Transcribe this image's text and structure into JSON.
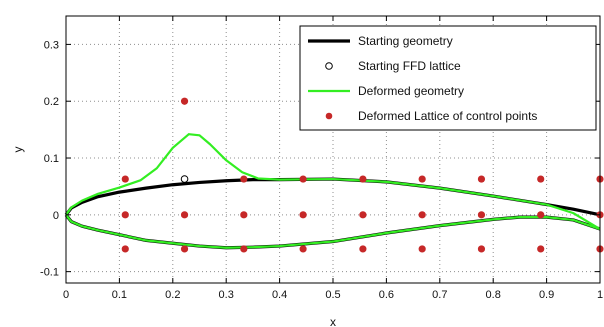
{
  "colors": {
    "background": "#ffffff",
    "axis": "#000000",
    "grid": "#8f8f8f",
    "starting_geometry": "#000000",
    "deformed_geometry": "#33ee22",
    "ffd_lattice_marker_edge": "#000000",
    "deformed_points": "#c62828"
  },
  "chart_data": {
    "type": "line",
    "xlabel": "x",
    "ylabel": "y",
    "xlim": [
      0,
      1
    ],
    "ylim": [
      -0.12,
      0.35
    ],
    "grid": true,
    "legend_position": "top-right",
    "x_ticks": [
      0,
      0.1,
      0.2,
      0.3,
      0.4,
      0.5,
      0.6,
      0.7,
      0.8,
      0.9,
      1
    ],
    "x_tick_labels": [
      "0",
      "0.1",
      "0.2",
      "0.3",
      "0.4",
      "0.5",
      "0.6",
      "0.7",
      "0.8",
      "0.9",
      "1"
    ],
    "y_ticks": [
      -0.1,
      0,
      0.1,
      0.2,
      0.3
    ],
    "y_tick_labels": [
      "-0.1",
      "0",
      "0.1",
      "0.2",
      "0.3"
    ],
    "legend": [
      {
        "label": "Starting geometry",
        "kind": "line",
        "series": "starting_geometry"
      },
      {
        "label": "Starting FFD lattice",
        "kind": "open-circle",
        "series": "starting_ffd_lattice"
      },
      {
        "label": "Deformed geometry",
        "kind": "line",
        "series": "deformed_geometry"
      },
      {
        "label": "Deformed Lattice of control points",
        "kind": "filled-dot",
        "series": "deformed_lattice"
      }
    ],
    "series": {
      "starting_geometry": {
        "upper": {
          "x": [
            0,
            0.01,
            0.03,
            0.06,
            0.1,
            0.15,
            0.2,
            0.25,
            0.3,
            0.35,
            0.4,
            0.5,
            0.6,
            0.7,
            0.8,
            0.9,
            0.95,
            1
          ],
          "y": [
            0,
            0.012,
            0.022,
            0.032,
            0.04,
            0.047,
            0.053,
            0.057,
            0.06,
            0.062,
            0.062,
            0.063,
            0.058,
            0.047,
            0.033,
            0.018,
            0.01,
            0
          ]
        },
        "lower": {
          "x": [
            0,
            0.01,
            0.03,
            0.06,
            0.1,
            0.15,
            0.2,
            0.25,
            0.3,
            0.35,
            0.4,
            0.5,
            0.6,
            0.7,
            0.8,
            0.85,
            0.9,
            0.95,
            1
          ],
          "y": [
            0,
            -0.012,
            -0.02,
            -0.027,
            -0.035,
            -0.045,
            -0.05,
            -0.055,
            -0.058,
            -0.057,
            -0.055,
            -0.047,
            -0.032,
            -0.019,
            -0.008,
            -0.004,
            -0.004,
            -0.009,
            -0.025
          ]
        }
      },
      "deformed_geometry": {
        "upper": {
          "x": [
            0,
            0.01,
            0.03,
            0.06,
            0.1,
            0.14,
            0.17,
            0.2,
            0.23,
            0.25,
            0.27,
            0.3,
            0.33,
            0.36,
            0.4,
            0.5,
            0.6,
            0.7,
            0.8,
            0.9,
            0.95,
            1
          ],
          "y": [
            0,
            0.013,
            0.025,
            0.037,
            0.048,
            0.061,
            0.082,
            0.118,
            0.142,
            0.14,
            0.124,
            0.096,
            0.075,
            0.064,
            0.062,
            0.063,
            0.058,
            0.047,
            0.033,
            0.018,
            0.003,
            -0.025
          ]
        },
        "lower": {
          "x": [
            0,
            0.01,
            0.03,
            0.06,
            0.1,
            0.15,
            0.2,
            0.25,
            0.3,
            0.35,
            0.4,
            0.5,
            0.6,
            0.7,
            0.8,
            0.85,
            0.9,
            0.95,
            1
          ],
          "y": [
            0,
            -0.012,
            -0.02,
            -0.027,
            -0.035,
            -0.045,
            -0.05,
            -0.055,
            -0.058,
            -0.057,
            -0.055,
            -0.047,
            -0.032,
            -0.019,
            -0.008,
            -0.004,
            -0.004,
            -0.009,
            -0.025
          ]
        }
      },
      "starting_ffd_lattice": {
        "points": [
          [
            0.222,
            0.063
          ]
        ]
      },
      "deformed_lattice": {
        "points": [
          [
            0.111,
            0.063
          ],
          [
            0.111,
            0.0
          ],
          [
            0.111,
            -0.06
          ],
          [
            0.222,
            0.2
          ],
          [
            0.222,
            0.0
          ],
          [
            0.222,
            -0.06
          ],
          [
            0.333,
            0.063
          ],
          [
            0.333,
            0.0
          ],
          [
            0.333,
            -0.06
          ],
          [
            0.444,
            0.063
          ],
          [
            0.444,
            0.0
          ],
          [
            0.444,
            -0.06
          ],
          [
            0.556,
            0.063
          ],
          [
            0.556,
            0.0
          ],
          [
            0.556,
            -0.06
          ],
          [
            0.667,
            0.063
          ],
          [
            0.667,
            0.0
          ],
          [
            0.667,
            -0.06
          ],
          [
            0.778,
            0.063
          ],
          [
            0.778,
            0.0
          ],
          [
            0.778,
            -0.06
          ],
          [
            0.889,
            0.063
          ],
          [
            0.889,
            0.0
          ],
          [
            0.889,
            -0.06
          ],
          [
            1.0,
            0.063
          ],
          [
            1.0,
            0.0
          ],
          [
            1.0,
            -0.06
          ]
        ]
      }
    }
  }
}
